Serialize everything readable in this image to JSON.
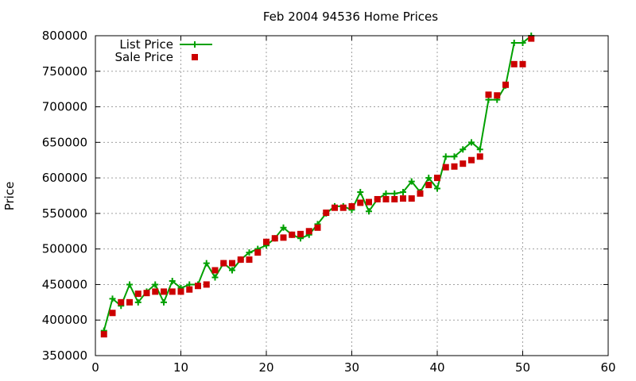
{
  "chart_data": {
    "type": "line",
    "title": "Feb 2004 94536 Home Prices",
    "xlabel": "",
    "ylabel": "Price",
    "xlim": [
      0,
      60
    ],
    "ylim": [
      350000,
      800000
    ],
    "xticks": [
      0,
      10,
      20,
      30,
      40,
      50,
      60
    ],
    "yticks": [
      350000,
      400000,
      450000,
      500000,
      550000,
      600000,
      650000,
      700000,
      750000,
      800000
    ],
    "grid": true,
    "legend_position": "top-left",
    "series": [
      {
        "name": "List Price",
        "style": "line-plus",
        "color": "#00a000",
        "x": [
          1,
          2,
          3,
          4,
          5,
          6,
          7,
          8,
          9,
          10,
          11,
          12,
          13,
          14,
          15,
          16,
          17,
          18,
          19,
          20,
          21,
          22,
          23,
          24,
          25,
          26,
          27,
          28,
          29,
          30,
          31,
          32,
          33,
          34,
          35,
          36,
          37,
          38,
          39,
          40,
          41,
          42,
          43,
          44,
          45,
          46,
          47,
          48,
          49,
          50,
          51
        ],
        "y": [
          385000,
          430000,
          420000,
          450000,
          425000,
          440000,
          450000,
          425000,
          455000,
          445000,
          450000,
          450000,
          480000,
          460000,
          480000,
          470000,
          485000,
          495000,
          500000,
          505000,
          515000,
          530000,
          520000,
          515000,
          520000,
          535000,
          550000,
          560000,
          560000,
          555000,
          580000,
          553000,
          570000,
          578000,
          578000,
          580000,
          595000,
          580000,
          600000,
          585000,
          630000,
          630000,
          640000,
          650000,
          640000,
          710000,
          710000,
          730000,
          790000,
          790000,
          800000
        ]
      },
      {
        "name": "Sale Price",
        "style": "square",
        "color": "#cc0000",
        "x": [
          1,
          2,
          3,
          4,
          5,
          6,
          7,
          8,
          9,
          10,
          11,
          12,
          13,
          14,
          15,
          16,
          17,
          18,
          19,
          20,
          21,
          22,
          23,
          24,
          25,
          26,
          27,
          28,
          29,
          30,
          31,
          32,
          33,
          34,
          35,
          36,
          37,
          38,
          39,
          40,
          41,
          42,
          43,
          44,
          45,
          46,
          47,
          48,
          49,
          50,
          51
        ],
        "y": [
          380000,
          410000,
          425000,
          425000,
          437000,
          438000,
          440000,
          440000,
          440000,
          440000,
          443000,
          448000,
          450000,
          470000,
          480000,
          480000,
          485000,
          485000,
          495000,
          510000,
          515000,
          516000,
          520000,
          521000,
          525000,
          530000,
          551000,
          558000,
          558000,
          560000,
          565000,
          566000,
          570000,
          570000,
          570000,
          571000,
          571000,
          578000,
          590000,
          600000,
          615000,
          616000,
          620000,
          625000,
          630000,
          717000,
          716000,
          731000,
          760000,
          760000,
          796000
        ]
      }
    ]
  }
}
